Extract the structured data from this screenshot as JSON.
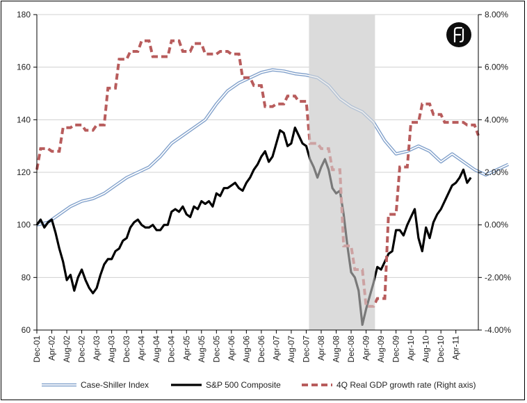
{
  "chart_data": {
    "type": "line",
    "title": "",
    "x_labels": [
      "Dec-01",
      "Apr-02",
      "Aug-02",
      "Dec-02",
      "Apr-03",
      "Aug-03",
      "Dec-03",
      "Apr-04",
      "Aug-04",
      "Dec-04",
      "Apr-05",
      "Aug-05",
      "Dec-05",
      "Apr-06",
      "Aug-06",
      "Dec-06",
      "Apr-07",
      "Aug-07",
      "Dec-07",
      "Apr-08",
      "Aug-08",
      "Dec-08",
      "Apr-09",
      "Aug-09",
      "Dec-09",
      "Apr-10",
      "Aug-10",
      "Dec-10",
      "Apr-11"
    ],
    "x_months": 118,
    "ylim_left": [
      60,
      180
    ],
    "yticks_left": [
      "60",
      "80",
      "100",
      "120",
      "140",
      "160",
      "180"
    ],
    "ylim_right": [
      -4,
      8
    ],
    "yticks_right": [
      "-4.00%",
      "-2.00%",
      "0.00%",
      "2.00%",
      "4.00%",
      "6.00%",
      "8.00%"
    ],
    "recession_shading": {
      "start": "Dec-07",
      "end": "Jun-09"
    },
    "legend_position": "bottom",
    "series": [
      {
        "name": "Case-Shiller Index",
        "axis": "left",
        "color": "#7f9fca",
        "points": [
          [
            0,
            100
          ],
          [
            3,
            101
          ],
          [
            6,
            104
          ],
          [
            9,
            107
          ],
          [
            12,
            109
          ],
          [
            15,
            110
          ],
          [
            18,
            112
          ],
          [
            21,
            115
          ],
          [
            24,
            118
          ],
          [
            27,
            120
          ],
          [
            30,
            122
          ],
          [
            33,
            126
          ],
          [
            36,
            131
          ],
          [
            39,
            134
          ],
          [
            42,
            137
          ],
          [
            45,
            140
          ],
          [
            48,
            146
          ],
          [
            51,
            151
          ],
          [
            54,
            154
          ],
          [
            57,
            156
          ],
          [
            60,
            158
          ],
          [
            63,
            159
          ],
          [
            66,
            158.5
          ],
          [
            69,
            157.5
          ],
          [
            72,
            157
          ],
          [
            75,
            156
          ],
          [
            78,
            153
          ],
          [
            81,
            148
          ],
          [
            84,
            145
          ],
          [
            87,
            143
          ],
          [
            90,
            139
          ],
          [
            93,
            132
          ],
          [
            96,
            127
          ],
          [
            99,
            128
          ],
          [
            102,
            130
          ],
          [
            105,
            128
          ],
          [
            108,
            124
          ],
          [
            111,
            127
          ],
          [
            114,
            124
          ],
          [
            117,
            121
          ],
          [
            120,
            119
          ],
          [
            123,
            121
          ],
          [
            126,
            123
          ]
        ]
      },
      {
        "name": "S&P 500 Composite",
        "axis": "left",
        "color": "#000000",
        "points": [
          [
            0,
            100
          ],
          [
            1,
            102
          ],
          [
            2,
            99
          ],
          [
            3,
            101
          ],
          [
            4,
            102
          ],
          [
            5,
            97
          ],
          [
            6,
            91
          ],
          [
            7,
            86
          ],
          [
            8,
            79
          ],
          [
            9,
            81
          ],
          [
            10,
            75
          ],
          [
            11,
            80
          ],
          [
            12,
            83
          ],
          [
            13,
            79
          ],
          [
            14,
            76
          ],
          [
            15,
            74
          ],
          [
            16,
            76
          ],
          [
            17,
            81
          ],
          [
            18,
            85
          ],
          [
            19,
            87
          ],
          [
            20,
            87
          ],
          [
            21,
            90
          ],
          [
            22,
            91
          ],
          [
            23,
            94
          ],
          [
            24,
            95
          ],
          [
            25,
            99
          ],
          [
            26,
            101
          ],
          [
            27,
            102
          ],
          [
            28,
            100
          ],
          [
            29,
            99
          ],
          [
            30,
            99
          ],
          [
            31,
            100
          ],
          [
            32,
            98
          ],
          [
            33,
            98
          ],
          [
            34,
            100
          ],
          [
            35,
            100
          ],
          [
            36,
            105
          ],
          [
            37,
            106
          ],
          [
            38,
            105
          ],
          [
            39,
            107
          ],
          [
            40,
            104
          ],
          [
            41,
            103
          ],
          [
            42,
            107
          ],
          [
            43,
            106
          ],
          [
            44,
            109
          ],
          [
            45,
            108
          ],
          [
            46,
            109
          ],
          [
            47,
            107
          ],
          [
            48,
            112
          ],
          [
            49,
            111
          ],
          [
            50,
            114
          ],
          [
            51,
            114
          ],
          [
            52,
            115
          ],
          [
            53,
            116
          ],
          [
            54,
            114
          ],
          [
            55,
            113
          ],
          [
            56,
            116
          ],
          [
            57,
            118
          ],
          [
            58,
            121
          ],
          [
            59,
            123
          ],
          [
            60,
            126
          ],
          [
            61,
            128
          ],
          [
            62,
            124
          ],
          [
            63,
            126
          ],
          [
            64,
            131
          ],
          [
            65,
            136
          ],
          [
            66,
            135
          ],
          [
            67,
            130
          ],
          [
            68,
            131
          ],
          [
            69,
            137
          ],
          [
            70,
            134
          ],
          [
            71,
            131
          ],
          [
            72,
            130
          ],
          [
            73,
            125
          ],
          [
            74,
            122
          ],
          [
            75,
            118
          ],
          [
            76,
            122
          ],
          [
            77,
            125
          ],
          [
            78,
            121
          ],
          [
            79,
            114
          ],
          [
            80,
            112
          ],
          [
            81,
            113
          ],
          [
            82,
            104
          ],
          [
            83,
            92
          ],
          [
            84,
            82
          ],
          [
            85,
            80
          ],
          [
            86,
            75
          ],
          [
            87,
            62
          ],
          [
            88,
            68
          ],
          [
            89,
            73
          ],
          [
            90,
            78
          ],
          [
            91,
            84
          ],
          [
            92,
            83
          ],
          [
            93,
            86
          ],
          [
            94,
            89
          ],
          [
            95,
            90
          ],
          [
            96,
            98
          ],
          [
            97,
            98
          ],
          [
            98,
            96
          ],
          [
            99,
            100
          ],
          [
            100,
            103
          ],
          [
            101,
            106
          ],
          [
            102,
            95
          ],
          [
            103,
            90
          ],
          [
            104,
            99
          ],
          [
            105,
            95
          ],
          [
            106,
            101
          ],
          [
            107,
            104
          ],
          [
            108,
            106
          ],
          [
            109,
            109
          ],
          [
            110,
            112
          ],
          [
            111,
            115
          ],
          [
            112,
            116
          ],
          [
            113,
            118
          ],
          [
            114,
            121
          ],
          [
            115,
            116
          ],
          [
            116,
            118
          ]
        ]
      },
      {
        "name": "4Q Real GDP growth rate (Right axis)",
        "axis": "right",
        "color": "#b85c5c",
        "points": [
          [
            0,
            2.1
          ],
          [
            1,
            2.9
          ],
          [
            3,
            2.9
          ],
          [
            4,
            2.8
          ],
          [
            6,
            2.8
          ],
          [
            7,
            3.7
          ],
          [
            9,
            3.7
          ],
          [
            10,
            3.8
          ],
          [
            12,
            3.8
          ],
          [
            13,
            3.6
          ],
          [
            15,
            3.6
          ],
          [
            16,
            3.8
          ],
          [
            18,
            3.8
          ],
          [
            19,
            5.2
          ],
          [
            21,
            5.2
          ],
          [
            22,
            6.3
          ],
          [
            24,
            6.3
          ],
          [
            25,
            6.6
          ],
          [
            27,
            6.6
          ],
          [
            28,
            7.0
          ],
          [
            30,
            7.0
          ],
          [
            31,
            6.4
          ],
          [
            35,
            6.4
          ],
          [
            36,
            7.0
          ],
          [
            38,
            7.0
          ],
          [
            39,
            6.6
          ],
          [
            41,
            6.6
          ],
          [
            42,
            6.9
          ],
          [
            44,
            6.9
          ],
          [
            45,
            6.5
          ],
          [
            48,
            6.5
          ],
          [
            49,
            6.6
          ],
          [
            51,
            6.6
          ],
          [
            52,
            6.5
          ],
          [
            54,
            6.5
          ],
          [
            55,
            5.6
          ],
          [
            57,
            5.6
          ],
          [
            58,
            5.3
          ],
          [
            60,
            5.3
          ],
          [
            61,
            4.5
          ],
          [
            63,
            4.5
          ],
          [
            64,
            4.6
          ],
          [
            66,
            4.6
          ],
          [
            67,
            4.9
          ],
          [
            69,
            4.9
          ],
          [
            70,
            4.7
          ],
          [
            72,
            4.7
          ],
          [
            73,
            3.1
          ],
          [
            75,
            3.1
          ],
          [
            76,
            2.9
          ],
          [
            78,
            2.9
          ],
          [
            79,
            2.1
          ],
          [
            81,
            2.1
          ],
          [
            82,
            -0.8
          ],
          [
            84,
            -0.8
          ],
          [
            85,
            -1.7
          ],
          [
            87,
            -1.7
          ],
          [
            88,
            -3.1
          ],
          [
            90,
            -3.1
          ],
          [
            91,
            -2.8
          ],
          [
            93,
            -2.8
          ],
          [
            94,
            0.4
          ],
          [
            96,
            0.4
          ],
          [
            97,
            2.2
          ],
          [
            99,
            2.2
          ],
          [
            100,
            3.9
          ],
          [
            102,
            3.9
          ],
          [
            103,
            4.6
          ],
          [
            105,
            4.6
          ],
          [
            106,
            4.2
          ],
          [
            108,
            4.2
          ],
          [
            109,
            3.9
          ],
          [
            114,
            3.9
          ],
          [
            115,
            3.8
          ],
          [
            117,
            3.8
          ],
          [
            118,
            3.4
          ]
        ]
      }
    ]
  },
  "logo": {
    "monogram": "fj",
    "name": "logo-badge"
  }
}
